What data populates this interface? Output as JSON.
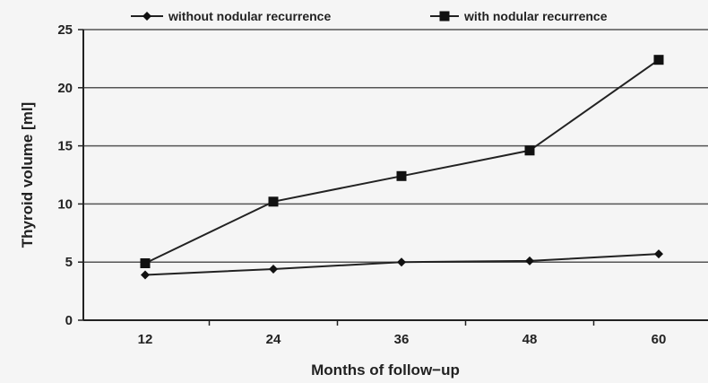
{
  "chart_data": {
    "type": "line",
    "categories": [
      "12",
      "24",
      "36",
      "48",
      "60"
    ],
    "series": [
      {
        "name": "without nodular recurrence",
        "marker": "diamond",
        "values": [
          3.9,
          4.4,
          5.0,
          5.1,
          5.7
        ]
      },
      {
        "name": "with nodular recurrence",
        "marker": "square",
        "values": [
          4.9,
          10.2,
          12.4,
          14.6,
          22.4
        ]
      }
    ],
    "xlabel": "Months of follow−up",
    "ylabel": "Thyroid volume [ml]",
    "ylim": [
      0,
      25
    ],
    "yticks": [
      "0",
      "5",
      "10",
      "15",
      "20",
      "25"
    ],
    "grid": true,
    "legend_position": "top",
    "colors": {
      "background": "#f5f5f5",
      "line": "#222222",
      "grid": "#555555"
    }
  }
}
